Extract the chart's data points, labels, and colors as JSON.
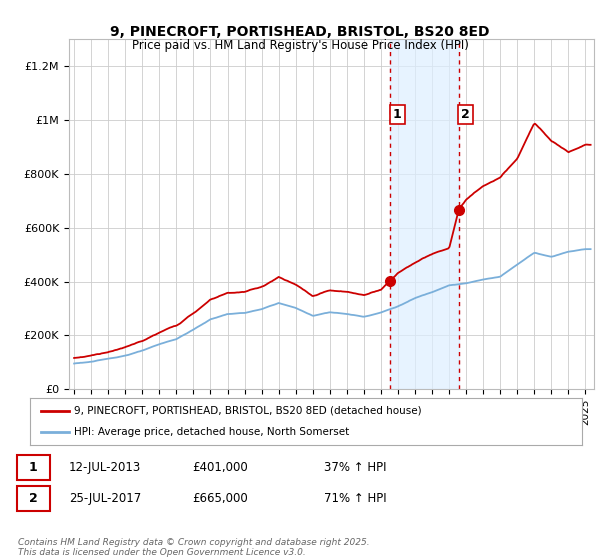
{
  "title": "9, PINECROFT, PORTISHEAD, BRISTOL, BS20 8ED",
  "subtitle": "Price paid vs. HM Land Registry's House Price Index (HPI)",
  "xlim_start": 1994.7,
  "xlim_end": 2025.5,
  "ylim": [
    0,
    1300000
  ],
  "yticks": [
    0,
    200000,
    400000,
    600000,
    800000,
    1000000,
    1200000
  ],
  "ytick_labels": [
    "£0",
    "£200K",
    "£400K",
    "£600K",
    "£800K",
    "£1M",
    "£1.2M"
  ],
  "xticks": [
    1995,
    1996,
    1997,
    1998,
    1999,
    2000,
    2001,
    2002,
    2003,
    2004,
    2005,
    2006,
    2007,
    2008,
    2009,
    2010,
    2011,
    2012,
    2013,
    2014,
    2015,
    2016,
    2017,
    2018,
    2019,
    2020,
    2021,
    2022,
    2023,
    2024,
    2025
  ],
  "sale1_x": 2013.54,
  "sale1_y": 401000,
  "sale1_label": "1",
  "sale2_x": 2017.57,
  "sale2_y": 665000,
  "sale2_label": "2",
  "sale1_date": "12-JUL-2013",
  "sale1_price": "£401,000",
  "sale1_hpi": "37% ↑ HPI",
  "sale2_date": "25-JUL-2017",
  "sale2_price": "£665,000",
  "sale2_hpi": "71% ↑ HPI",
  "legend_line1": "9, PINECROFT, PORTISHEAD, BRISTOL, BS20 8ED (detached house)",
  "legend_line2": "HPI: Average price, detached house, North Somerset",
  "footnote": "Contains HM Land Registry data © Crown copyright and database right 2025.\nThis data is licensed under the Open Government Licence v3.0.",
  "line_color_red": "#cc0000",
  "line_color_blue": "#7aafda",
  "shade_color": "#ddeeff",
  "vline_color": "#cc0000",
  "background_color": "#ffffff",
  "grid_color": "#cccccc",
  "hpi_anchors_x": [
    1995,
    1996,
    1997,
    1998,
    1999,
    2000,
    2001,
    2002,
    2003,
    2004,
    2005,
    2006,
    2007,
    2008,
    2009,
    2010,
    2011,
    2012,
    2013,
    2014,
    2015,
    2016,
    2017,
    2018,
    2019,
    2020,
    2021,
    2022,
    2023,
    2024,
    2025
  ],
  "hpi_anchors_y": [
    95000,
    102000,
    112000,
    125000,
    143000,
    165000,
    185000,
    220000,
    258000,
    278000,
    282000,
    295000,
    318000,
    300000,
    270000,
    285000,
    278000,
    268000,
    285000,
    308000,
    338000,
    360000,
    388000,
    395000,
    408000,
    420000,
    465000,
    510000,
    495000,
    515000,
    525000
  ],
  "red_anchors_x": [
    1995,
    1996,
    1997,
    1998,
    1999,
    2000,
    2001,
    2002,
    2003,
    2004,
    2005,
    2006,
    2007,
    2008,
    2009,
    2010,
    2011,
    2012,
    2013,
    2013.54,
    2014,
    2015,
    2016,
    2017,
    2017.57,
    2018,
    2019,
    2020,
    2021,
    2022,
    2023,
    2024,
    2025
  ],
  "red_anchors_y": [
    120000,
    130000,
    145000,
    162000,
    185000,
    215000,
    240000,
    285000,
    335000,
    360000,
    365000,
    382000,
    420000,
    390000,
    345000,
    365000,
    358000,
    345000,
    368000,
    401000,
    430000,
    470000,
    500000,
    520000,
    665000,
    700000,
    750000,
    780000,
    850000,
    980000,
    920000,
    880000,
    910000
  ]
}
